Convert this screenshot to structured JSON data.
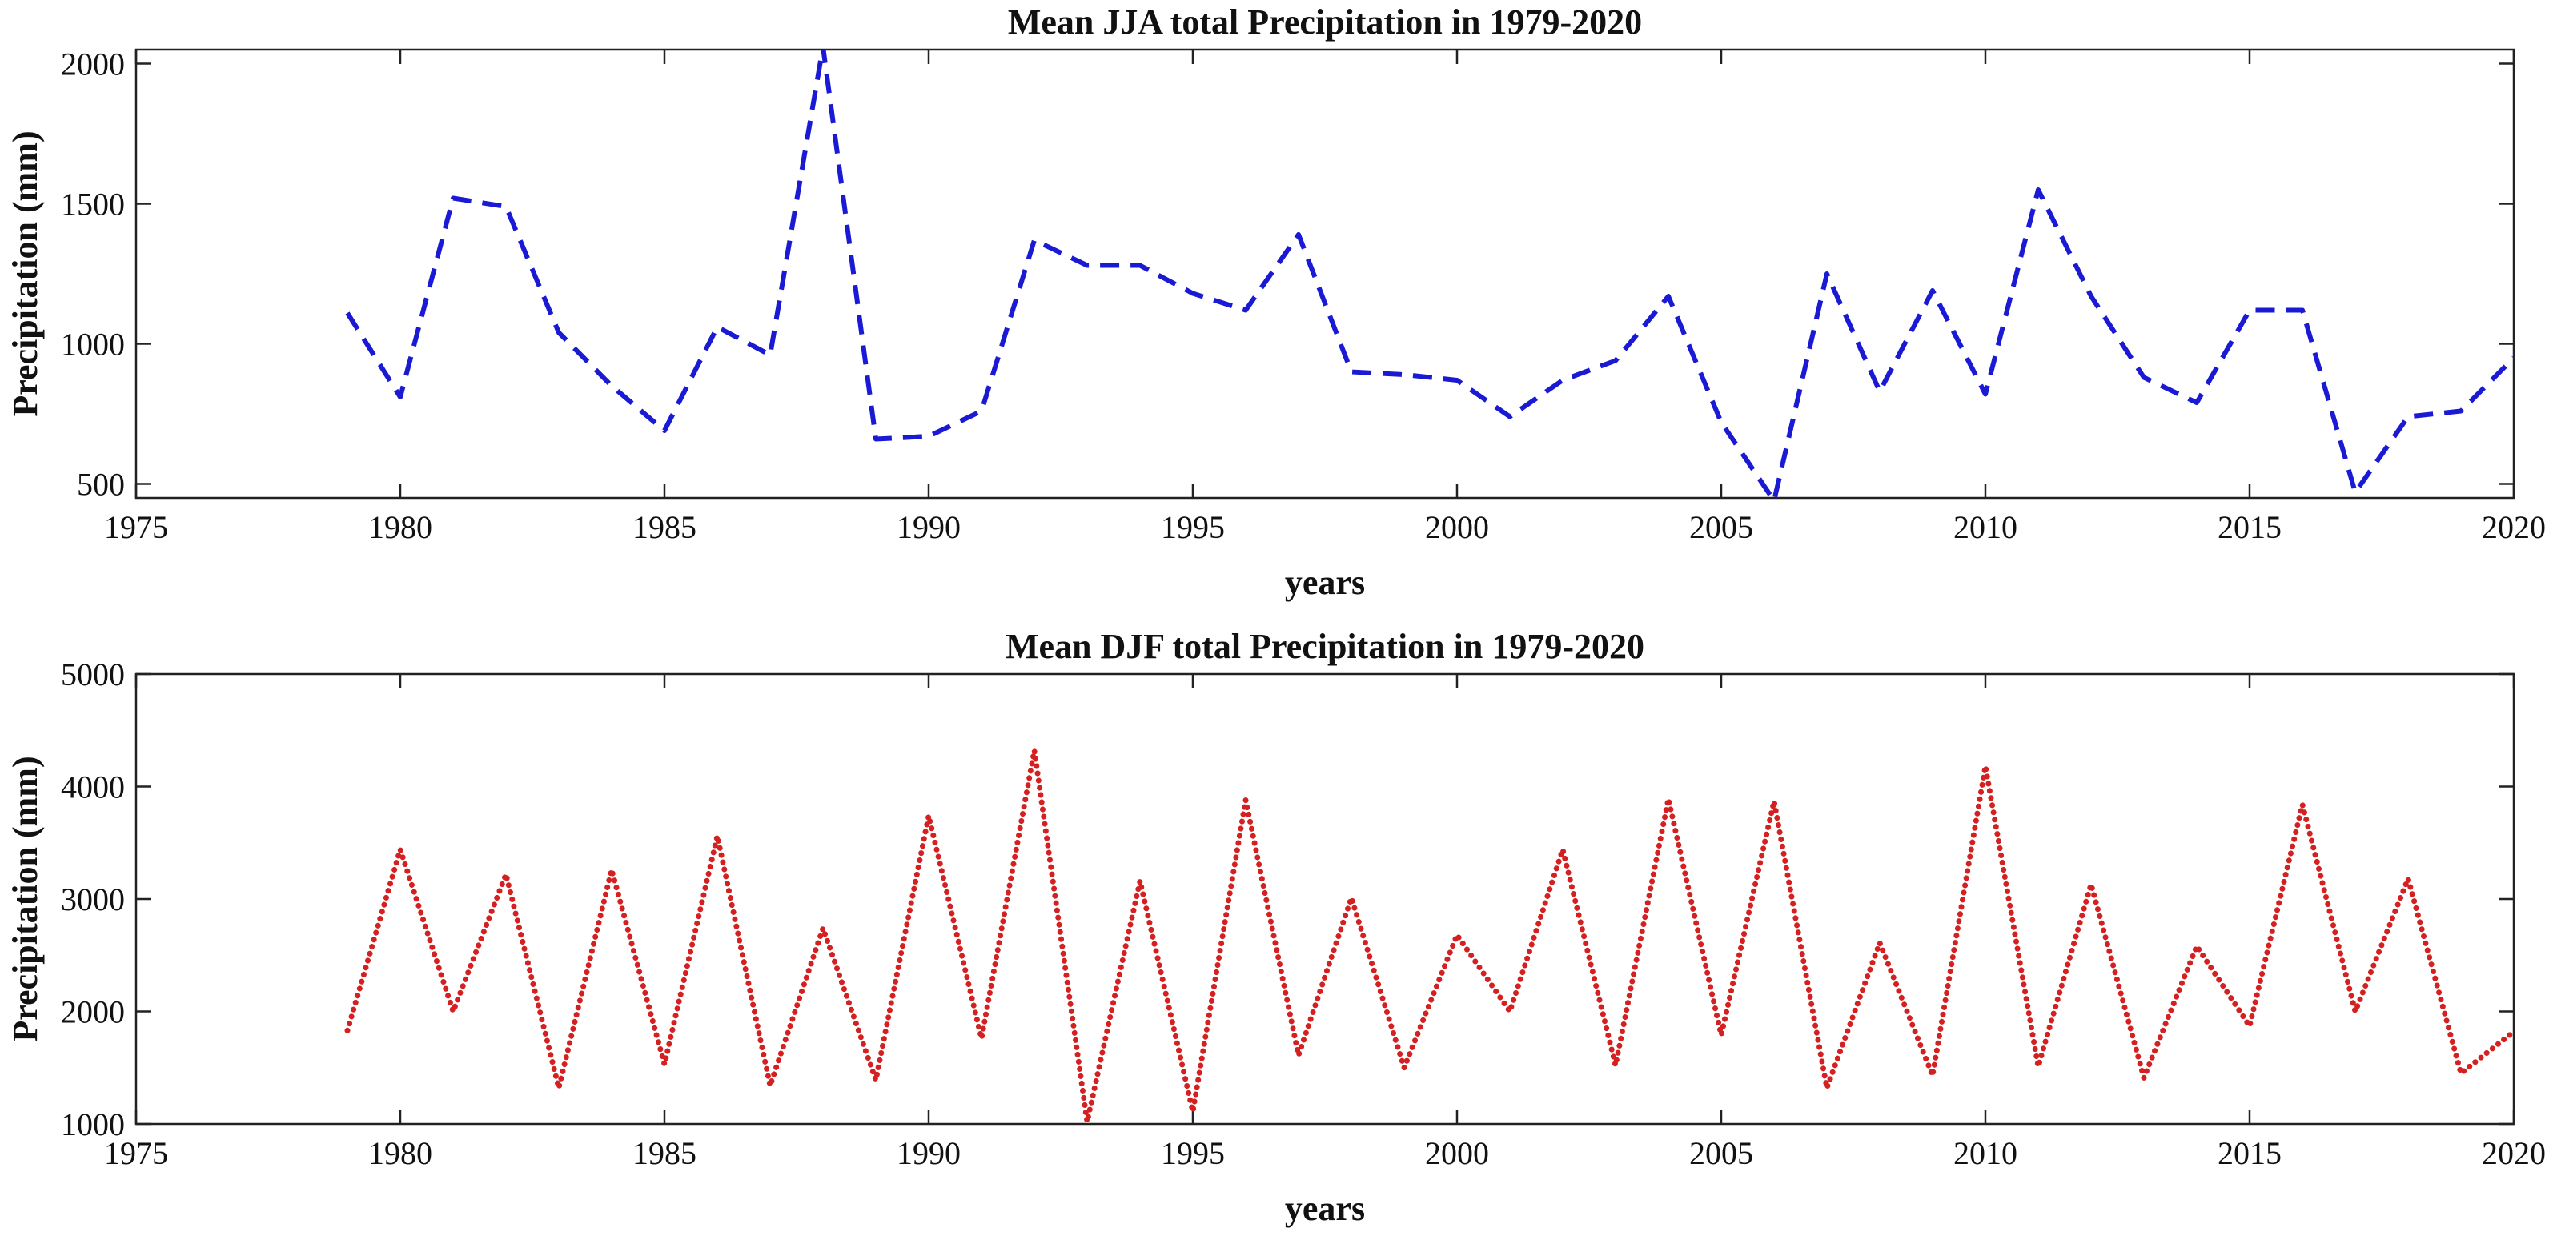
{
  "chart_data": [
    {
      "type": "line",
      "title": "Mean JJA total Precipitation in 1979-2020",
      "xlabel": "years",
      "ylabel": "Precipitation (mm)",
      "xlim": [
        1975,
        2020
      ],
      "ylim": [
        450,
        2050
      ],
      "xticks": [
        1975,
        1980,
        1985,
        1990,
        1995,
        2000,
        2005,
        2010,
        2015,
        2020
      ],
      "yticks": [
        500,
        1000,
        1500,
        2000
      ],
      "grid": false,
      "series": [
        {
          "name": "JJA",
          "color": "#1a1ad4",
          "line_style": "dashed",
          "x": [
            1979,
            1980,
            1981,
            1982,
            1983,
            1984,
            1985,
            1986,
            1987,
            1988,
            1989,
            1990,
            1991,
            1992,
            1993,
            1994,
            1995,
            1996,
            1997,
            1998,
            1999,
            2000,
            2001,
            2002,
            2003,
            2004,
            2005,
            2006,
            2007,
            2008,
            2009,
            2010,
            2011,
            2012,
            2013,
            2014,
            2015,
            2016,
            2017,
            2018,
            2019,
            2020
          ],
          "values": [
            1110,
            810,
            1520,
            1490,
            1040,
            850,
            690,
            1060,
            960,
            2060,
            660,
            670,
            760,
            1370,
            1280,
            1280,
            1180,
            1120,
            1390,
            900,
            890,
            870,
            740,
            870,
            940,
            1170,
            720,
            440,
            1250,
            830,
            1190,
            820,
            1550,
            1170,
            880,
            790,
            1120,
            1120,
            470,
            740,
            760,
            950
          ]
        }
      ]
    },
    {
      "type": "line",
      "title": "Mean DJF total Precipitation in 1979-2020",
      "xlabel": "years",
      "ylabel": "Precipitation (mm)",
      "xlim": [
        1975,
        2020
      ],
      "ylim": [
        1000,
        5000
      ],
      "xticks": [
        1975,
        1980,
        1985,
        1990,
        1995,
        2000,
        2005,
        2010,
        2015,
        2020
      ],
      "yticks": [
        1000,
        2000,
        3000,
        4000,
        5000
      ],
      "grid": false,
      "series": [
        {
          "name": "DJF",
          "color": "#d42020",
          "line_style": "dotted",
          "x": [
            1979,
            1980,
            1981,
            1982,
            1983,
            1984,
            1985,
            1986,
            1987,
            1988,
            1989,
            1990,
            1991,
            1992,
            1993,
            1994,
            1995,
            1996,
            1997,
            1998,
            1999,
            2000,
            2001,
            2002,
            2003,
            2004,
            2005,
            2006,
            2007,
            2008,
            2009,
            2010,
            2011,
            2012,
            2013,
            2014,
            2015,
            2016,
            2017,
            2018,
            2019,
            2020
          ],
          "values": [
            1830,
            3440,
            2000,
            3220,
            1320,
            3260,
            1530,
            3560,
            1340,
            2740,
            1390,
            3740,
            1760,
            4320,
            1020,
            3160,
            1110,
            3880,
            1610,
            3010,
            1500,
            2680,
            2000,
            3440,
            1520,
            3890,
            1790,
            3870,
            1320,
            2610,
            1430,
            4180,
            1510,
            3130,
            1410,
            2580,
            1870,
            3840,
            2000,
            3180,
            1450,
            1820
          ]
        }
      ]
    }
  ]
}
